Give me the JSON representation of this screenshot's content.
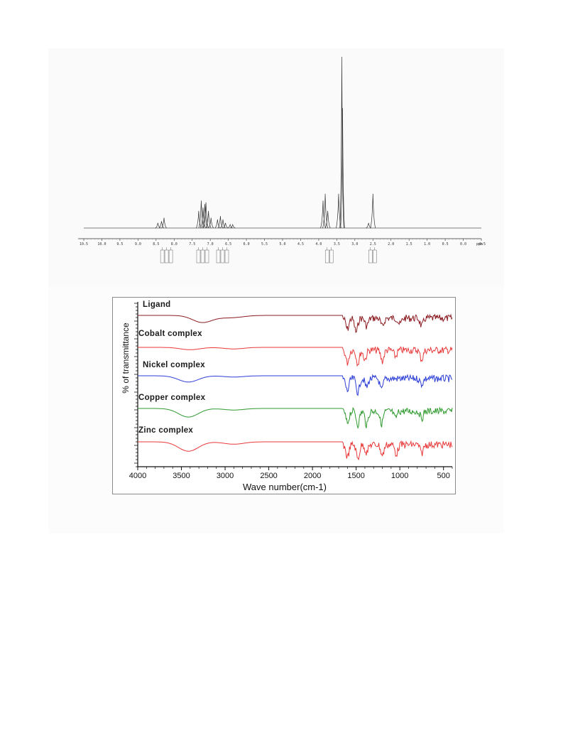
{
  "chart_data": [
    {
      "type": "line",
      "kind": "1H NMR spectrum",
      "xlabel": "ppm",
      "x_reversed": true,
      "xlim": [
        10.5,
        -0.5
      ],
      "xticks": [
        "10.5",
        "10.0",
        "9.5",
        "9.0",
        "8.5",
        "8.0",
        "7.5",
        "7.0",
        "6.5",
        "6.0",
        "5.5",
        "5.0",
        "4.5",
        "4.0",
        "3.5",
        "3.0",
        "2.5",
        "2.0",
        "1.5",
        "1.0",
        "0.5",
        "0.0",
        "-0.5"
      ],
      "x_unit_label": "ppm",
      "ylim": [
        0,
        100
      ],
      "grid": false,
      "line_color": "#333333",
      "peaks": [
        {
          "ppm": 8.45,
          "height": 3
        },
        {
          "ppm": 8.35,
          "height": 4
        },
        {
          "ppm": 8.28,
          "height": 6
        },
        {
          "ppm": 7.32,
          "height": 10
        },
        {
          "ppm": 7.25,
          "height": 16
        },
        {
          "ppm": 7.2,
          "height": 12
        },
        {
          "ppm": 7.15,
          "height": 14
        },
        {
          "ppm": 7.12,
          "height": 15
        },
        {
          "ppm": 7.05,
          "height": 10
        },
        {
          "ppm": 6.98,
          "height": 6
        },
        {
          "ppm": 6.8,
          "height": 5
        },
        {
          "ppm": 6.72,
          "height": 7
        },
        {
          "ppm": 6.65,
          "height": 5
        },
        {
          "ppm": 6.58,
          "height": 3
        },
        {
          "ppm": 6.45,
          "height": 2
        },
        {
          "ppm": 6.38,
          "height": 2
        },
        {
          "ppm": 3.88,
          "height": 16
        },
        {
          "ppm": 3.82,
          "height": 20
        },
        {
          "ppm": 3.75,
          "height": 10
        },
        {
          "ppm": 3.45,
          "height": 20
        },
        {
          "ppm": 3.36,
          "height": 100
        },
        {
          "ppm": 3.34,
          "height": 70
        },
        {
          "ppm": 2.62,
          "height": 3
        },
        {
          "ppm": 2.5,
          "height": 20
        }
      ],
      "integration_groups_ppm": [
        8.2,
        7.2,
        6.65,
        3.7,
        2.5
      ]
    },
    {
      "type": "line",
      "kind": "FT-IR spectra",
      "xlabel": "Wave number(cm-1)",
      "ylabel": "% of transmittance",
      "xlim": [
        4000,
        400
      ],
      "x_reversed": true,
      "xticks": [
        4000,
        3500,
        3000,
        2500,
        2000,
        1500,
        1000,
        500
      ],
      "grid": false,
      "series": [
        {
          "name": "Ligand",
          "color": "#8b1c22",
          "offset": 0,
          "bands": [
            {
              "wn": 3260,
              "depth": 0.45
            },
            {
              "wn": 3000,
              "depth": 0.1
            },
            {
              "wn": 2860,
              "depth": 0.08
            },
            {
              "wn": 1600,
              "depth": 0.7
            },
            {
              "wn": 1500,
              "depth": 0.9
            },
            {
              "wn": 1380,
              "depth": 0.5
            },
            {
              "wn": 1200,
              "depth": 0.55
            },
            {
              "wn": 1000,
              "depth": 0.4
            },
            {
              "wn": 750,
              "depth": 0.5
            }
          ]
        },
        {
          "name": "Cobalt complex",
          "color": "#e8393a",
          "offset": 1,
          "bands": [
            {
              "wn": 3400,
              "depth": 0.15
            },
            {
              "wn": 2900,
              "depth": 0.1
            },
            {
              "wn": 1600,
              "depth": 0.8
            },
            {
              "wn": 1480,
              "depth": 0.85
            },
            {
              "wn": 1400,
              "depth": 0.6
            },
            {
              "wn": 1200,
              "depth": 0.7
            },
            {
              "wn": 1050,
              "depth": 0.4
            },
            {
              "wn": 750,
              "depth": 0.6
            }
          ]
        },
        {
          "name": "Nickel complex",
          "color": "#2d3fd6",
          "offset": 2,
          "bands": [
            {
              "wn": 3420,
              "depth": 0.4
            },
            {
              "wn": 2900,
              "depth": 0.08
            },
            {
              "wn": 1600,
              "depth": 0.8
            },
            {
              "wn": 1480,
              "depth": 0.9
            },
            {
              "wn": 1380,
              "depth": 0.55
            },
            {
              "wn": 1210,
              "depth": 0.75
            },
            {
              "wn": 750,
              "depth": 0.35
            }
          ]
        },
        {
          "name": "Copper complex",
          "color": "#2e9a2e",
          "offset": 3,
          "bands": [
            {
              "wn": 3420,
              "depth": 0.55
            },
            {
              "wn": 2900,
              "depth": 0.1
            },
            {
              "wn": 1600,
              "depth": 0.75
            },
            {
              "wn": 1480,
              "depth": 0.85
            },
            {
              "wn": 1380,
              "depth": 0.9
            },
            {
              "wn": 1210,
              "depth": 0.8
            },
            {
              "wn": 1050,
              "depth": 0.45
            },
            {
              "wn": 750,
              "depth": 0.45
            }
          ]
        },
        {
          "name": "Zinc complex",
          "color": "#e8393a",
          "offset": 4,
          "bands": [
            {
              "wn": 3420,
              "depth": 0.6
            },
            {
              "wn": 2900,
              "depth": 0.15
            },
            {
              "wn": 1600,
              "depth": 0.8
            },
            {
              "wn": 1480,
              "depth": 0.9
            },
            {
              "wn": 1380,
              "depth": 0.5
            },
            {
              "wn": 1200,
              "depth": 0.7
            },
            {
              "wn": 1040,
              "depth": 0.6
            },
            {
              "wn": 750,
              "depth": 0.55
            }
          ]
        }
      ]
    }
  ]
}
